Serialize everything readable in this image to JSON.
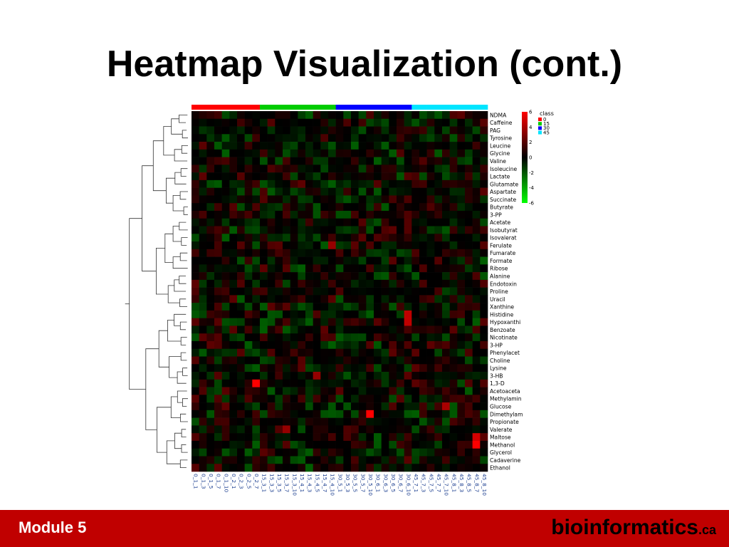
{
  "slide": {
    "title": "Heatmap Visualization (cont.)",
    "footer_label": "Module 5",
    "brand_name": "bioinformatics",
    "brand_tld": ".ca",
    "footer_color": "#c00000"
  },
  "chart_data": {
    "type": "heatmap",
    "title": "",
    "rows": [
      "NDMA",
      "Caffeine",
      "PAG",
      "Tyrosine",
      "Leucine",
      "Glycine",
      "Valine",
      "Isoleucine",
      "Lactate",
      "Glutamate",
      "Aspartate",
      "Succinate",
      "Butyrate",
      "3-PP",
      "Acetate",
      "Isobutyrat",
      "Isovalerat",
      "Ferulate",
      "Fumarate",
      "Formate",
      "Ribose",
      "Alanine",
      "Endotoxin",
      "Proline",
      "Uracil",
      "Xanthine",
      "Histidine",
      "Hypoxanthi",
      "Benzoate",
      "Nicotinate",
      "3-HP",
      "Phenylacet",
      "Choline",
      "Lysine",
      "3-HB",
      "1,3-D",
      "Acetoaceta",
      "Methylamin",
      "Glucose",
      "Dimethylam",
      "Propionate",
      "Valerate",
      "Maltose",
      "Methanol",
      "Glycerol",
      "Cadaverine",
      "Ethanol"
    ],
    "columns": [
      "0_1_1",
      "0_1_3",
      "0_1_5",
      "0_1_7",
      "0_1_10",
      "0_2_1",
      "0_2_3",
      "0_2_5",
      "0_2_7",
      "15_3_1",
      "15_3_3",
      "15_3_5",
      "15_3_7",
      "15_3_10",
      "15_4_1",
      "15_4_3",
      "15_4_5",
      "15_4_7",
      "15_4_10",
      "30_5_1",
      "30_5_3",
      "30_5_5",
      "30_5_7",
      "30_5_10",
      "30_6_1",
      "30_6_3",
      "30_6_5",
      "30_6_7",
      "30_6_10",
      "45_7_1",
      "45_7_3",
      "45_7_5",
      "45_7_7",
      "45_7_10",
      "45_8_1",
      "45_8_3",
      "45_8_5",
      "45_8_7",
      "45_8_10"
    ],
    "column_classes": [
      0,
      0,
      0,
      0,
      0,
      0,
      0,
      0,
      0,
      15,
      15,
      15,
      15,
      15,
      15,
      15,
      15,
      15,
      15,
      30,
      30,
      30,
      30,
      30,
      30,
      30,
      30,
      30,
      30,
      45,
      45,
      45,
      45,
      45,
      45,
      45,
      45,
      45,
      45
    ],
    "class_legend": {
      "title": "class",
      "items": [
        {
          "label": "0",
          "color": "#ff0000"
        },
        {
          "label": "15",
          "color": "#00cc00"
        },
        {
          "label": "30",
          "color": "#0000ff"
        },
        {
          "label": "45",
          "color": "#00e5ff"
        }
      ]
    },
    "color_scale": {
      "min": -6,
      "max": 6,
      "ticks": [
        "6",
        "4",
        "2",
        "0",
        "-2",
        "-4",
        "-6"
      ],
      "low_color": "#00ff00",
      "mid_color": "#000000",
      "high_color": "#ff0000"
    },
    "highlights": [
      {
        "row": "1,3-D",
        "column": "0_2_7",
        "value": 6
      },
      {
        "row": "Dimethylam",
        "column": "30_5_10",
        "value": 6
      },
      {
        "row": "Methanol",
        "column": "45_8_7",
        "value": 6
      },
      {
        "row": "Maltose",
        "column": "45_8_7",
        "value": 5
      },
      {
        "row": "Histidine",
        "column": "30_6_10",
        "value": 4.5
      },
      {
        "row": "Hypoxanthi",
        "column": "30_6_10",
        "value": 4.5
      },
      {
        "row": "Glucose",
        "column": "45_7_10",
        "value": 4
      },
      {
        "row": "Ferulate",
        "column": "15_4_10",
        "value": 3.5
      },
      {
        "row": "3-HB",
        "column": "15_4_5",
        "value": 3.5
      },
      {
        "row": "Valerate",
        "column": "15_3_7",
        "value": 3.5
      }
    ],
    "dendrogram": "rows"
  }
}
